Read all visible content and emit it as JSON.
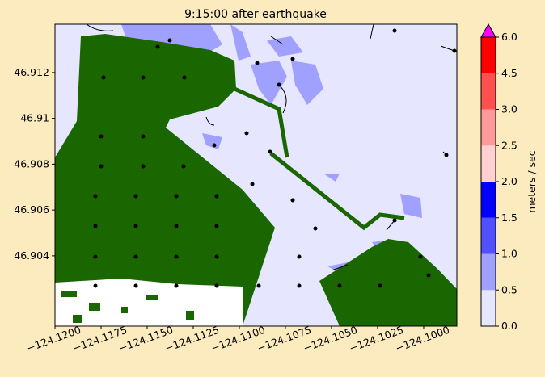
{
  "title": "9:15:00 after earthquake",
  "xlim": [
    -124.12,
    -124.0982
  ],
  "ylim": [
    46.90093,
    46.91411
  ],
  "xticks": [
    {
      "value": -124.12,
      "label": "−124.1200"
    },
    {
      "value": -124.1175,
      "label": "−124.1175"
    },
    {
      "value": -124.115,
      "label": "−124.1150"
    },
    {
      "value": -124.1125,
      "label": "−124.1125"
    },
    {
      "value": -124.11,
      "label": "−124.1100"
    },
    {
      "value": -124.1075,
      "label": "−124.1075"
    },
    {
      "value": -124.105,
      "label": "−124.1050"
    },
    {
      "value": -124.1025,
      "label": "−124.1025"
    },
    {
      "value": -124.1,
      "label": "−124.1000"
    }
  ],
  "yticks": [
    46.904,
    46.906,
    46.908,
    46.91,
    46.912
  ],
  "colorbar": {
    "label": "meters / sec",
    "levels": [
      {
        "value": 0,
        "label": "0.0"
      },
      0.5,
      {
        "value": 1,
        "label": "1.0"
      },
      1.5,
      {
        "value": 2,
        "label": "2.0"
      },
      2.5,
      {
        "value": 3,
        "label": "3.0"
      },
      4.5,
      {
        "value": 6,
        "label": "6.0"
      }
    ],
    "colors": [
      "#e6e6ff",
      "#a0a0ff",
      "#5050ff",
      "#0000ff",
      "#ffd0d0",
      "#ff9a9a",
      "#ff5050",
      "#ff0000"
    ],
    "extend_color": "#ff00ff"
  }
}
